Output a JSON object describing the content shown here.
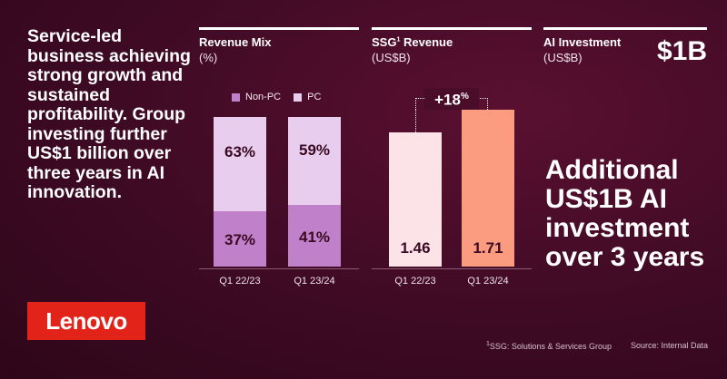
{
  "headline": "Service-led business achieving strong growth and sustained profitability. Group investing further US$1 billion over three years in AI innovation.",
  "logo_text": "Lenovo",
  "colors": {
    "non_pc": "#c180ca",
    "pc": "#e8cdee",
    "ssg_prev": "#fbe3e8",
    "ssg_curr": "#fb9b80",
    "brand_red": "#e2231a"
  },
  "revenue_mix": {
    "title": "Revenue Mix",
    "unit": "(%)",
    "legend": [
      "Non-PC",
      "PC"
    ]
  },
  "ssg_revenue": {
    "title": "SSG",
    "title_sup": "1",
    "title_rest": " Revenue",
    "unit": "(US$B)",
    "growth_label": "+18",
    "growth_suffix": "%"
  },
  "ai_investment": {
    "title": "AI Investment",
    "unit": "(US$B)",
    "value": "$1B",
    "text": "Additional US$1B AI investment over 3 years"
  },
  "footnote": "1SSG: Solutions & Services Group",
  "source": "Source: Internal Data",
  "chart_data": [
    {
      "type": "bar",
      "stacked": true,
      "title": "Revenue Mix",
      "ylabel": "(%)",
      "categories": [
        "Q1 22/23",
        "Q1 23/24"
      ],
      "series": [
        {
          "name": "Non-PC",
          "values": [
            37,
            41
          ],
          "labels": [
            "37%",
            "41%"
          ]
        },
        {
          "name": "PC",
          "values": [
            63,
            59
          ],
          "labels": [
            "63%",
            "59%"
          ]
        }
      ],
      "ylim": [
        0,
        100
      ],
      "legend": "top"
    },
    {
      "type": "bar",
      "title": "SSG Revenue",
      "ylabel": "(US$B)",
      "categories": [
        "Q1 22/23",
        "Q1 23/24"
      ],
      "values": [
        1.46,
        1.71
      ],
      "labels": [
        "1.46",
        "1.71"
      ],
      "ylim": [
        0,
        1.8
      ],
      "annotation": "+18%"
    }
  ]
}
